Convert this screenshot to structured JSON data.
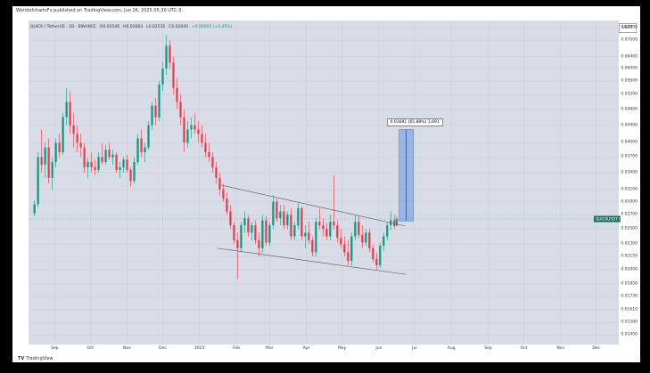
{
  "header": {
    "publisher_text": "WorldofchartsFx published on TradingView.com, Jun 16, 2025 05:30 UTC-3"
  },
  "legend": {
    "symbol": "QUICK / TetherUS · 1D · BINANCE",
    "open": "O0.02546",
    "high": "H0.02683",
    "low": "L0.02535",
    "close": "C0.02640",
    "change": "+0.00092 (+3.45%)"
  },
  "currency_button": "USDT",
  "price_tag": "QUICKUSDT 0.02640",
  "measure_label": "0.01691 (65.88%) 1,691",
  "brand": {
    "logo": "TV",
    "name": "TradingView"
  },
  "colors": {
    "up": "#089981",
    "down": "#f23645",
    "target_box": "#4a86e8",
    "plot_bg": "#d7dce6"
  },
  "chart_data": {
    "type": "candlestick",
    "yaxis": {
      "scale": "log",
      "ticks": [
        "0.07500",
        "0.07000",
        "0.06400",
        "0.06000",
        "0.05600",
        "0.05200",
        "0.04800",
        "0.04400",
        "0.04000",
        "0.03700",
        "0.03400",
        "0.03100",
        "0.02900",
        "0.02700",
        "0.02500",
        "0.02300",
        "0.02150",
        "0.02000",
        "0.01850",
        "0.01730",
        "0.01610",
        "0.01500",
        "0.01400"
      ],
      "range": [
        0.0133,
        0.078
      ]
    },
    "xaxis": {
      "ticks": [
        {
          "label": "Sep",
          "date": "2024-09-01"
        },
        {
          "label": "Oct",
          "date": "2024-10-01"
        },
        {
          "label": "Nov",
          "date": "2024-11-01"
        },
        {
          "label": "Dec",
          "date": "2024-12-01"
        },
        {
          "label": "2025",
          "date": "2025-01-01"
        },
        {
          "label": "Feb",
          "date": "2025-02-01"
        },
        {
          "label": "Mar",
          "date": "2025-03-01"
        },
        {
          "label": "Apr",
          "date": "2025-04-01"
        },
        {
          "label": "May",
          "date": "2025-05-01"
        },
        {
          "label": "Jun",
          "date": "2025-06-01"
        },
        {
          "label": "Jul",
          "date": "2025-07-01"
        },
        {
          "label": "Aug",
          "date": "2025-08-01"
        },
        {
          "label": "Sep",
          "date": "2025-09-01"
        },
        {
          "label": "Oct",
          "date": "2025-10-01"
        },
        {
          "label": "Nov",
          "date": "2025-11-01"
        },
        {
          "label": "Dec",
          "date": "2025-12-01"
        }
      ],
      "range": [
        "2024-08-10",
        "2025-12-20"
      ]
    },
    "last_price": 0.0264,
    "candles": [
      {
        "date": "2024-08-15",
        "o": 0.0272,
        "h": 0.0292,
        "l": 0.0268,
        "c": 0.0286
      },
      {
        "date": "2024-08-18",
        "o": 0.0286,
        "h": 0.038,
        "l": 0.0282,
        "c": 0.037
      },
      {
        "date": "2024-08-21",
        "o": 0.037,
        "h": 0.043,
        "l": 0.034,
        "c": 0.0355
      },
      {
        "date": "2024-08-24",
        "o": 0.0355,
        "h": 0.04,
        "l": 0.033,
        "c": 0.039
      },
      {
        "date": "2024-08-27",
        "o": 0.039,
        "h": 0.041,
        "l": 0.032,
        "c": 0.033
      },
      {
        "date": "2024-08-30",
        "o": 0.033,
        "h": 0.037,
        "l": 0.031,
        "c": 0.036
      },
      {
        "date": "2024-09-02",
        "o": 0.036,
        "h": 0.041,
        "l": 0.035,
        "c": 0.04
      },
      {
        "date": "2024-09-05",
        "o": 0.04,
        "h": 0.042,
        "l": 0.037,
        "c": 0.038
      },
      {
        "date": "2024-09-08",
        "o": 0.038,
        "h": 0.047,
        "l": 0.0375,
        "c": 0.046
      },
      {
        "date": "2024-09-11",
        "o": 0.046,
        "h": 0.054,
        "l": 0.044,
        "c": 0.05
      },
      {
        "date": "2024-09-14",
        "o": 0.05,
        "h": 0.053,
        "l": 0.042,
        "c": 0.044
      },
      {
        "date": "2024-09-17",
        "o": 0.044,
        "h": 0.047,
        "l": 0.039,
        "c": 0.042
      },
      {
        "date": "2024-09-20",
        "o": 0.042,
        "h": 0.044,
        "l": 0.038,
        "c": 0.04
      },
      {
        "date": "2024-09-23",
        "o": 0.04,
        "h": 0.042,
        "l": 0.037,
        "c": 0.039
      },
      {
        "date": "2024-09-26",
        "o": 0.039,
        "h": 0.04,
        "l": 0.034,
        "c": 0.035
      },
      {
        "date": "2024-09-29",
        "o": 0.035,
        "h": 0.037,
        "l": 0.033,
        "c": 0.036
      },
      {
        "date": "2024-10-02",
        "o": 0.036,
        "h": 0.038,
        "l": 0.034,
        "c": 0.035
      },
      {
        "date": "2024-10-05",
        "o": 0.035,
        "h": 0.0365,
        "l": 0.0335,
        "c": 0.0345
      },
      {
        "date": "2024-10-08",
        "o": 0.0345,
        "h": 0.038,
        "l": 0.034,
        "c": 0.037
      },
      {
        "date": "2024-10-11",
        "o": 0.037,
        "h": 0.04,
        "l": 0.0355,
        "c": 0.036
      },
      {
        "date": "2024-10-14",
        "o": 0.036,
        "h": 0.0395,
        "l": 0.0355,
        "c": 0.0385
      },
      {
        "date": "2024-10-17",
        "o": 0.0385,
        "h": 0.04,
        "l": 0.0365,
        "c": 0.037
      },
      {
        "date": "2024-10-20",
        "o": 0.037,
        "h": 0.0385,
        "l": 0.0355,
        "c": 0.0375
      },
      {
        "date": "2024-10-23",
        "o": 0.0375,
        "h": 0.038,
        "l": 0.034,
        "c": 0.0345
      },
      {
        "date": "2024-10-26",
        "o": 0.0345,
        "h": 0.036,
        "l": 0.033,
        "c": 0.035
      },
      {
        "date": "2024-10-29",
        "o": 0.035,
        "h": 0.037,
        "l": 0.034,
        "c": 0.0365
      },
      {
        "date": "2024-11-01",
        "o": 0.0365,
        "h": 0.0375,
        "l": 0.034,
        "c": 0.0345
      },
      {
        "date": "2024-11-04",
        "o": 0.0345,
        "h": 0.035,
        "l": 0.0315,
        "c": 0.0325
      },
      {
        "date": "2024-11-07",
        "o": 0.0325,
        "h": 0.037,
        "l": 0.032,
        "c": 0.036
      },
      {
        "date": "2024-11-10",
        "o": 0.036,
        "h": 0.042,
        "l": 0.0355,
        "c": 0.041
      },
      {
        "date": "2024-11-13",
        "o": 0.041,
        "h": 0.043,
        "l": 0.037,
        "c": 0.038
      },
      {
        "date": "2024-11-16",
        "o": 0.038,
        "h": 0.04,
        "l": 0.036,
        "c": 0.039
      },
      {
        "date": "2024-11-19",
        "o": 0.039,
        "h": 0.045,
        "l": 0.0385,
        "c": 0.044
      },
      {
        "date": "2024-11-22",
        "o": 0.044,
        "h": 0.05,
        "l": 0.043,
        "c": 0.049
      },
      {
        "date": "2024-11-25",
        "o": 0.049,
        "h": 0.051,
        "l": 0.044,
        "c": 0.046
      },
      {
        "date": "2024-11-28",
        "o": 0.046,
        "h": 0.056,
        "l": 0.045,
        "c": 0.055
      },
      {
        "date": "2024-12-01",
        "o": 0.055,
        "h": 0.062,
        "l": 0.053,
        "c": 0.06
      },
      {
        "date": "2024-12-04",
        "o": 0.06,
        "h": 0.072,
        "l": 0.058,
        "c": 0.068
      },
      {
        "date": "2024-12-07",
        "o": 0.068,
        "h": 0.07,
        "l": 0.06,
        "c": 0.062
      },
      {
        "date": "2024-12-10",
        "o": 0.062,
        "h": 0.064,
        "l": 0.052,
        "c": 0.054
      },
      {
        "date": "2024-12-13",
        "o": 0.054,
        "h": 0.057,
        "l": 0.048,
        "c": 0.05
      },
      {
        "date": "2024-12-16",
        "o": 0.05,
        "h": 0.052,
        "l": 0.044,
        "c": 0.046
      },
      {
        "date": "2024-12-19",
        "o": 0.046,
        "h": 0.048,
        "l": 0.038,
        "c": 0.04
      },
      {
        "date": "2024-12-22",
        "o": 0.04,
        "h": 0.045,
        "l": 0.039,
        "c": 0.043
      },
      {
        "date": "2024-12-25",
        "o": 0.043,
        "h": 0.046,
        "l": 0.041,
        "c": 0.044
      },
      {
        "date": "2024-12-28",
        "o": 0.044,
        "h": 0.047,
        "l": 0.042,
        "c": 0.043
      },
      {
        "date": "2024-12-31",
        "o": 0.043,
        "h": 0.045,
        "l": 0.04,
        "c": 0.042
      },
      {
        "date": "2025-01-03",
        "o": 0.042,
        "h": 0.044,
        "l": 0.039,
        "c": 0.04
      },
      {
        "date": "2025-01-06",
        "o": 0.04,
        "h": 0.042,
        "l": 0.037,
        "c": 0.038
      },
      {
        "date": "2025-01-09",
        "o": 0.038,
        "h": 0.04,
        "l": 0.036,
        "c": 0.037
      },
      {
        "date": "2025-01-12",
        "o": 0.037,
        "h": 0.038,
        "l": 0.034,
        "c": 0.035
      },
      {
        "date": "2025-01-15",
        "o": 0.035,
        "h": 0.036,
        "l": 0.032,
        "c": 0.033
      },
      {
        "date": "2025-01-18",
        "o": 0.033,
        "h": 0.034,
        "l": 0.03,
        "c": 0.031
      },
      {
        "date": "2025-01-21",
        "o": 0.031,
        "h": 0.032,
        "l": 0.029,
        "c": 0.0295
      },
      {
        "date": "2025-01-24",
        "o": 0.0295,
        "h": 0.0305,
        "l": 0.027,
        "c": 0.0275
      },
      {
        "date": "2025-01-27",
        "o": 0.0275,
        "h": 0.0285,
        "l": 0.025,
        "c": 0.0255
      },
      {
        "date": "2025-01-30",
        "o": 0.0255,
        "h": 0.026,
        "l": 0.023,
        "c": 0.0235
      },
      {
        "date": "2025-02-02",
        "o": 0.0235,
        "h": 0.0245,
        "l": 0.019,
        "c": 0.0225
      },
      {
        "date": "2025-02-05",
        "o": 0.0225,
        "h": 0.026,
        "l": 0.022,
        "c": 0.0255
      },
      {
        "date": "2025-02-08",
        "o": 0.0255,
        "h": 0.0275,
        "l": 0.0245,
        "c": 0.0265
      },
      {
        "date": "2025-02-11",
        "o": 0.0265,
        "h": 0.027,
        "l": 0.024,
        "c": 0.0245
      },
      {
        "date": "2025-02-14",
        "o": 0.0245,
        "h": 0.026,
        "l": 0.0235,
        "c": 0.0255
      },
      {
        "date": "2025-02-17",
        "o": 0.0255,
        "h": 0.0262,
        "l": 0.023,
        "c": 0.0235
      },
      {
        "date": "2025-02-20",
        "o": 0.0235,
        "h": 0.0245,
        "l": 0.0215,
        "c": 0.0225
      },
      {
        "date": "2025-02-23",
        "o": 0.0225,
        "h": 0.027,
        "l": 0.022,
        "c": 0.0262
      },
      {
        "date": "2025-02-26",
        "o": 0.0262,
        "h": 0.0268,
        "l": 0.0228,
        "c": 0.0232
      },
      {
        "date": "2025-03-01",
        "o": 0.0232,
        "h": 0.026,
        "l": 0.0228,
        "c": 0.0255
      },
      {
        "date": "2025-03-04",
        "o": 0.0255,
        "h": 0.03,
        "l": 0.025,
        "c": 0.029
      },
      {
        "date": "2025-03-07",
        "o": 0.029,
        "h": 0.0295,
        "l": 0.026,
        "c": 0.0265
      },
      {
        "date": "2025-03-10",
        "o": 0.0265,
        "h": 0.0285,
        "l": 0.0255,
        "c": 0.0275
      },
      {
        "date": "2025-03-13",
        "o": 0.0275,
        "h": 0.0285,
        "l": 0.025,
        "c": 0.0255
      },
      {
        "date": "2025-03-16",
        "o": 0.0255,
        "h": 0.0275,
        "l": 0.025,
        "c": 0.027
      },
      {
        "date": "2025-03-19",
        "o": 0.027,
        "h": 0.028,
        "l": 0.0235,
        "c": 0.024
      },
      {
        "date": "2025-03-22",
        "o": 0.024,
        "h": 0.026,
        "l": 0.0235,
        "c": 0.0255
      },
      {
        "date": "2025-03-25",
        "o": 0.0255,
        "h": 0.029,
        "l": 0.025,
        "c": 0.028
      },
      {
        "date": "2025-03-28",
        "o": 0.028,
        "h": 0.0282,
        "l": 0.0235,
        "c": 0.024
      },
      {
        "date": "2025-03-31",
        "o": 0.024,
        "h": 0.0255,
        "l": 0.0225,
        "c": 0.0245
      },
      {
        "date": "2025-04-03",
        "o": 0.0245,
        "h": 0.026,
        "l": 0.023,
        "c": 0.0235
      },
      {
        "date": "2025-04-06",
        "o": 0.0235,
        "h": 0.024,
        "l": 0.0215,
        "c": 0.022
      },
      {
        "date": "2025-04-09",
        "o": 0.022,
        "h": 0.0265,
        "l": 0.0215,
        "c": 0.026
      },
      {
        "date": "2025-04-12",
        "o": 0.026,
        "h": 0.028,
        "l": 0.025,
        "c": 0.0255
      },
      {
        "date": "2025-04-15",
        "o": 0.0255,
        "h": 0.0265,
        "l": 0.024,
        "c": 0.025
      },
      {
        "date": "2025-04-18",
        "o": 0.025,
        "h": 0.0258,
        "l": 0.0235,
        "c": 0.024
      },
      {
        "date": "2025-04-21",
        "o": 0.024,
        "h": 0.027,
        "l": 0.0235,
        "c": 0.026
      },
      {
        "date": "2025-04-24",
        "o": 0.026,
        "h": 0.0335,
        "l": 0.025,
        "c": 0.0255
      },
      {
        "date": "2025-04-27",
        "o": 0.0255,
        "h": 0.0262,
        "l": 0.0232,
        "c": 0.0238
      },
      {
        "date": "2025-04-30",
        "o": 0.0238,
        "h": 0.025,
        "l": 0.0225,
        "c": 0.023
      },
      {
        "date": "2025-05-03",
        "o": 0.023,
        "h": 0.024,
        "l": 0.0215,
        "c": 0.022
      },
      {
        "date": "2025-05-06",
        "o": 0.022,
        "h": 0.0235,
        "l": 0.0205,
        "c": 0.021
      },
      {
        "date": "2025-05-09",
        "o": 0.021,
        "h": 0.0245,
        "l": 0.0205,
        "c": 0.024
      },
      {
        "date": "2025-05-12",
        "o": 0.024,
        "h": 0.027,
        "l": 0.0235,
        "c": 0.026
      },
      {
        "date": "2025-05-15",
        "o": 0.026,
        "h": 0.0268,
        "l": 0.0238,
        "c": 0.0242
      },
      {
        "date": "2025-05-18",
        "o": 0.0242,
        "h": 0.0255,
        "l": 0.0225,
        "c": 0.0232
      },
      {
        "date": "2025-05-21",
        "o": 0.0232,
        "h": 0.025,
        "l": 0.0228,
        "c": 0.0245
      },
      {
        "date": "2025-05-24",
        "o": 0.0245,
        "h": 0.025,
        "l": 0.022,
        "c": 0.0225
      },
      {
        "date": "2025-05-27",
        "o": 0.0225,
        "h": 0.023,
        "l": 0.0208,
        "c": 0.0212
      },
      {
        "date": "2025-05-30",
        "o": 0.0212,
        "h": 0.022,
        "l": 0.02,
        "c": 0.0205
      },
      {
        "date": "2025-06-02",
        "o": 0.0205,
        "h": 0.0232,
        "l": 0.0202,
        "c": 0.0228
      },
      {
        "date": "2025-06-05",
        "o": 0.0228,
        "h": 0.0245,
        "l": 0.0222,
        "c": 0.024
      },
      {
        "date": "2025-06-08",
        "o": 0.024,
        "h": 0.026,
        "l": 0.0235,
        "c": 0.0255
      },
      {
        "date": "2025-06-11",
        "o": 0.0255,
        "h": 0.0275,
        "l": 0.0248,
        "c": 0.0262
      },
      {
        "date": "2025-06-14",
        "o": 0.0262,
        "h": 0.027,
        "l": 0.025,
        "c": 0.0254
      },
      {
        "date": "2025-06-16",
        "o": 0.02546,
        "h": 0.02683,
        "l": 0.02535,
        "c": 0.0264
      }
    ],
    "channel": {
      "upper": [
        {
          "date": "2025-01-18",
          "price": 0.0318
        },
        {
          "date": "2025-06-23",
          "price": 0.0254
        }
      ],
      "lower": [
        {
          "date": "2025-01-16",
          "price": 0.0225
        },
        {
          "date": "2025-06-24",
          "price": 0.0195
        }
      ]
    },
    "target_projection": {
      "date_start": "2025-06-18",
      "date_end": "2025-06-30",
      "price_low": 0.0261,
      "price_high": 0.043
    }
  }
}
